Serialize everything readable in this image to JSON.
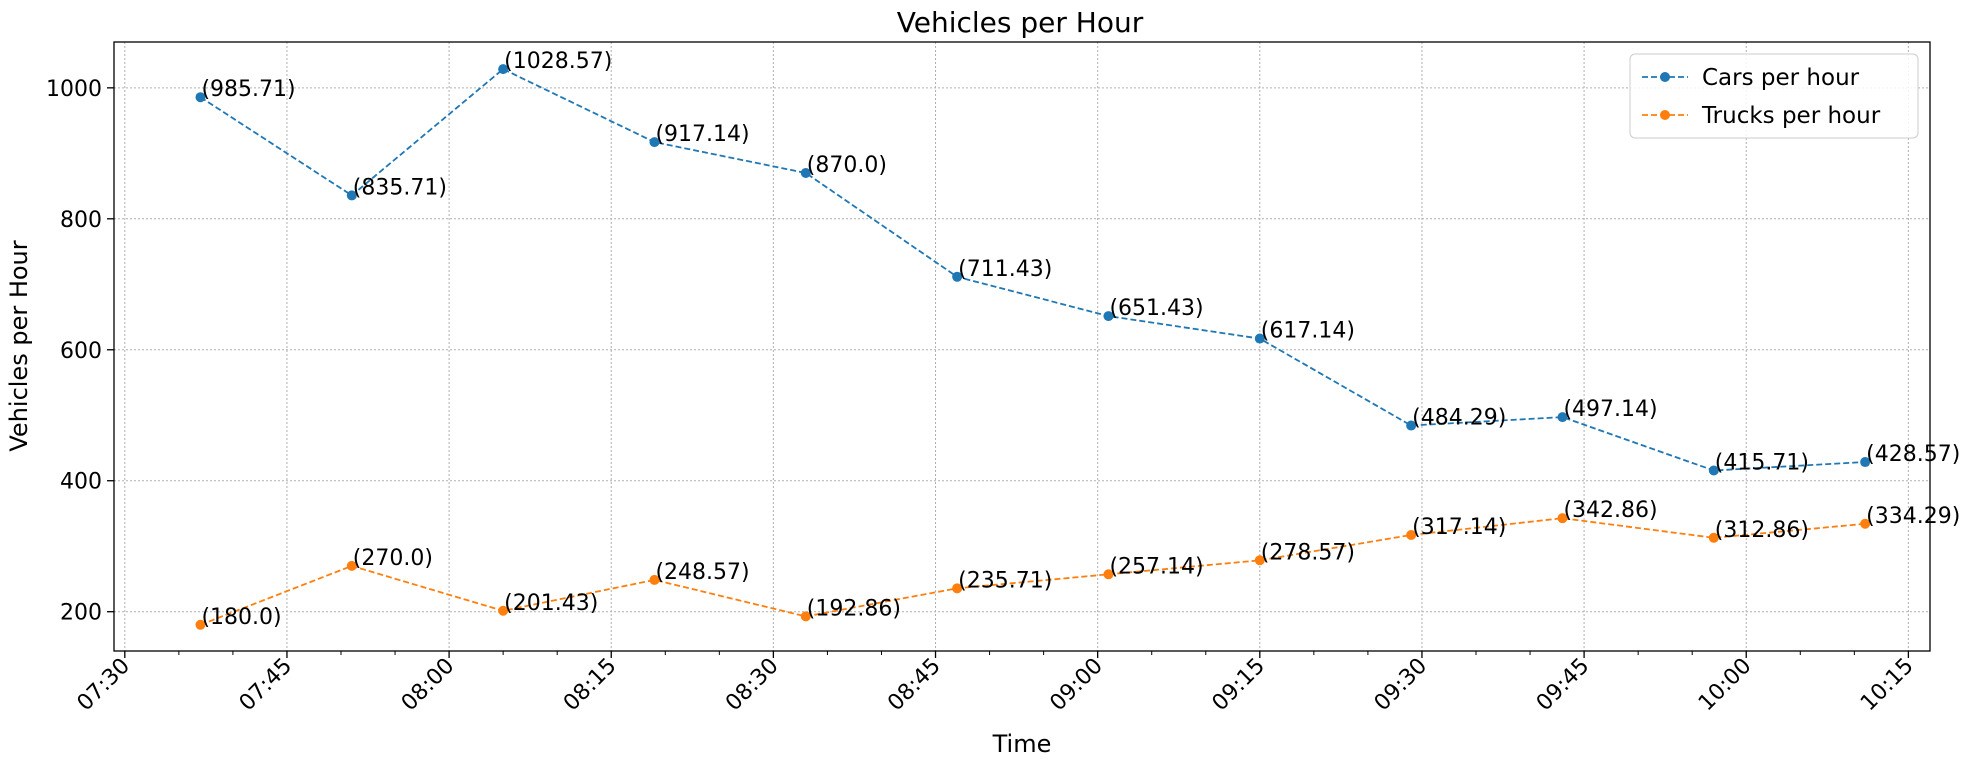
{
  "chart_data": {
    "type": "line",
    "title": "Vehicles per Hour",
    "xlabel": "Time",
    "ylabel": "Vehicles per Hour",
    "x": [
      "07:37",
      "07:51",
      "08:05",
      "08:19",
      "08:33",
      "08:47",
      "09:01",
      "09:15",
      "09:29",
      "09:43",
      "09:57",
      "10:11"
    ],
    "xlim": [
      "07:29",
      "10:17"
    ],
    "ylim": [
      140,
      1070
    ],
    "x_ticks": [
      "07:30",
      "07:45",
      "08:00",
      "08:15",
      "08:30",
      "08:45",
      "09:00",
      "09:15",
      "09:30",
      "09:45",
      "10:00",
      "10:15"
    ],
    "y_ticks": [
      200,
      400,
      600,
      800,
      1000
    ],
    "grid": true,
    "legend_position": "top-right",
    "series": [
      {
        "name": "Cars per hour",
        "color": "#1f77b4",
        "values": [
          985.71,
          835.71,
          1028.57,
          917.14,
          870.0,
          711.43,
          651.43,
          617.14,
          484.29,
          497.14,
          415.71,
          428.57
        ],
        "labels": [
          "(985.71)",
          "(835.71)",
          "(1028.57)",
          "(917.14)",
          "(870.0)",
          "(711.43)",
          "(651.43)",
          "(617.14)",
          "(484.29)",
          "(497.14)",
          "(415.71)",
          "(428.57)"
        ]
      },
      {
        "name": "Trucks per hour",
        "color": "#ff7f0e",
        "values": [
          180.0,
          270.0,
          201.43,
          248.57,
          192.86,
          235.71,
          257.14,
          278.57,
          317.14,
          342.86,
          312.86,
          334.29
        ],
        "labels": [
          "(180.0)",
          "(270.0)",
          "(201.43)",
          "(248.57)",
          "(192.86)",
          "(235.71)",
          "(257.14)",
          "(278.57)",
          "(317.14)",
          "(342.86)",
          "(312.86)",
          "(334.29)"
        ]
      }
    ]
  }
}
